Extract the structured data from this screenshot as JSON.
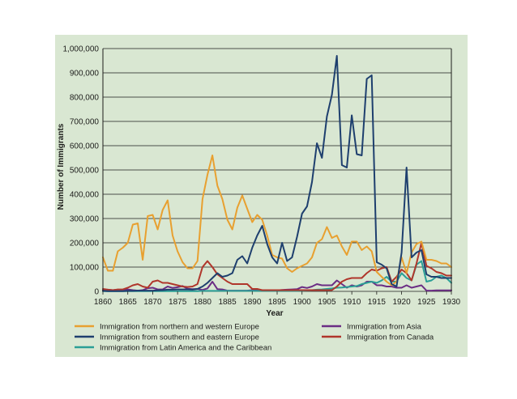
{
  "chart_data": {
    "type": "line",
    "title": "",
    "xlabel": "Year",
    "ylabel": "Number of Immigrants",
    "xlim": [
      1860,
      1930
    ],
    "ylim": [
      0,
      1000000
    ],
    "grid": true,
    "x_ticks": [
      "1860",
      "1865",
      "1870",
      "1875",
      "1880",
      "1885",
      "1890",
      "1895",
      "1900",
      "1905",
      "1910",
      "1915",
      "1920",
      "1925",
      "1930"
    ],
    "y_ticks": [
      "0",
      "100,000",
      "200,000",
      "300,000",
      "400,000",
      "500,000",
      "600,000",
      "700,000",
      "800,000",
      "900,000",
      "1,000,000"
    ],
    "legend_position": "bottom",
    "x": [
      1860,
      1861,
      1862,
      1863,
      1864,
      1865,
      1866,
      1867,
      1868,
      1869,
      1870,
      1871,
      1872,
      1873,
      1874,
      1875,
      1876,
      1877,
      1878,
      1879,
      1880,
      1881,
      1882,
      1883,
      1884,
      1885,
      1886,
      1887,
      1888,
      1889,
      1890,
      1891,
      1892,
      1893,
      1894,
      1895,
      1896,
      1897,
      1898,
      1899,
      1900,
      1901,
      1902,
      1903,
      1904,
      1905,
      1906,
      1907,
      1908,
      1909,
      1910,
      1911,
      1912,
      1913,
      1914,
      1915,
      1916,
      1917,
      1918,
      1919,
      1920,
      1921,
      1922,
      1923,
      1924,
      1925,
      1926,
      1927,
      1928,
      1929,
      1930
    ],
    "series": [
      {
        "name": "Immigration from northern and western Europe",
        "color": "#e8a030",
        "values": [
          140000,
          85000,
          85000,
          165000,
          180000,
          200000,
          275000,
          280000,
          130000,
          310000,
          315000,
          255000,
          335000,
          375000,
          230000,
          165000,
          120000,
          95000,
          95000,
          125000,
          380000,
          480000,
          560000,
          435000,
          380000,
          295000,
          255000,
          345000,
          395000,
          340000,
          285000,
          315000,
          295000,
          230000,
          150000,
          140000,
          135000,
          95000,
          80000,
          95000,
          105000,
          115000,
          140000,
          200000,
          215000,
          265000,
          220000,
          230000,
          185000,
          150000,
          205000,
          205000,
          170000,
          185000,
          165000,
          80000,
          60000,
          40000,
          25000,
          40000,
          140000,
          75000,
          160000,
          195000,
          205000,
          130000,
          130000,
          125000,
          115000,
          115000,
          100000
        ]
      },
      {
        "name": "Immigration from southern and eastern Europe",
        "color": "#1e3f6e",
        "values": [
          2000,
          1000,
          1000,
          1000,
          1000,
          2000,
          2000,
          3000,
          3000,
          3000,
          3000,
          4000,
          5000,
          7000,
          7000,
          8000,
          8000,
          8000,
          7000,
          10000,
          20000,
          35000,
          55000,
          75000,
          60000,
          65000,
          75000,
          130000,
          145000,
          115000,
          180000,
          230000,
          270000,
          195000,
          140000,
          115000,
          200000,
          125000,
          140000,
          225000,
          320000,
          350000,
          450000,
          610000,
          550000,
          720000,
          810000,
          970000,
          520000,
          510000,
          725000,
          565000,
          560000,
          875000,
          890000,
          120000,
          110000,
          95000,
          30000,
          20000,
          160000,
          510000,
          140000,
          160000,
          170000,
          70000,
          60000,
          60000,
          55000,
          55000,
          55000
        ]
      },
      {
        "name": "Immigration from Latin America and the Caribbean",
        "color": "#2b9f96",
        "values": [
          1000,
          1000,
          1000,
          1000,
          1000,
          1000,
          1000,
          1000,
          1000,
          1000,
          1000,
          1000,
          1000,
          1000,
          1000,
          1000,
          1000,
          1000,
          1000,
          1000,
          2000,
          2000,
          2000,
          2000,
          2000,
          2000,
          2000,
          2000,
          2000,
          2000,
          2000,
          2000,
          2000,
          2000,
          2000,
          2000,
          2000,
          2000,
          2000,
          2000,
          3000,
          4000,
          5000,
          7000,
          8000,
          10000,
          12000,
          15000,
          16000,
          18000,
          20000,
          22000,
          30000,
          35000,
          40000,
          35000,
          45000,
          60000,
          40000,
          40000,
          75000,
          55000,
          45000,
          110000,
          125000,
          40000,
          45000,
          60000,
          65000,
          55000,
          35000
        ]
      },
      {
        "name": "Immigration from Asia",
        "color": "#6b2d84",
        "values": [
          5000,
          7000,
          5000,
          7000,
          5000,
          8000,
          5000,
          3000,
          5000,
          13000,
          15000,
          8000,
          8000,
          20000,
          14000,
          17000,
          22000,
          11000,
          9000,
          10000,
          6000,
          12000,
          40000,
          9000,
          8000,
          3000,
          3000,
          3000,
          3000,
          3000,
          5000,
          4000,
          3000,
          4000,
          4000,
          4000,
          6000,
          7000,
          8000,
          9000,
          18000,
          14000,
          20000,
          30000,
          25000,
          25000,
          25000,
          45000,
          30000,
          15000,
          25000,
          20000,
          25000,
          40000,
          40000,
          25000,
          25000,
          20000,
          20000,
          15000,
          15000,
          25000,
          15000,
          20000,
          25000,
          3000,
          3000,
          4000,
          4000,
          4000,
          4000
        ]
      },
      {
        "name": "Immigration from Canada",
        "color": "#b0362b",
        "values": [
          10000,
          7000,
          5000,
          8000,
          8000,
          15000,
          25000,
          30000,
          20000,
          15000,
          40000,
          45000,
          35000,
          35000,
          30000,
          25000,
          20000,
          18000,
          20000,
          30000,
          100000,
          125000,
          100000,
          70000,
          55000,
          40000,
          30000,
          30000,
          30000,
          30000,
          10000,
          10000,
          5000,
          5000,
          5000,
          5000,
          5000,
          5000,
          5000,
          5000,
          5000,
          5000,
          5000,
          5000,
          5000,
          5000,
          5000,
          20000,
          40000,
          50000,
          55000,
          55000,
          55000,
          75000,
          90000,
          85000,
          95000,
          100000,
          40000,
          60000,
          90000,
          75000,
          45000,
          115000,
          200000,
          105000,
          95000,
          80000,
          75000,
          65000,
          65000
        ]
      }
    ]
  },
  "legend_items": [
    {
      "label": "Immigration from northern and western Europe",
      "color": "#e8a030"
    },
    {
      "label": "Immigration from southern and eastern Europe",
      "color": "#1e3f6e"
    },
    {
      "label": "Immigration from Latin America and the Caribbean",
      "color": "#2b9f96"
    },
    {
      "label": "Immigration from Asia",
      "color": "#6b2d84"
    },
    {
      "label": "Immigration from Canada",
      "color": "#b0362b"
    }
  ]
}
